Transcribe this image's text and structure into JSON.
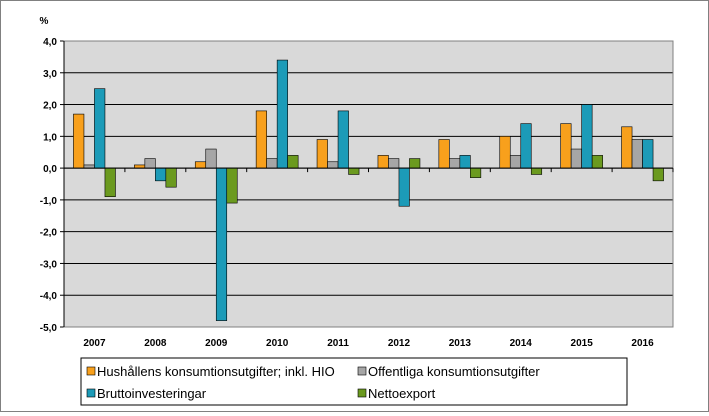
{
  "chart_data": {
    "type": "bar",
    "unit_label": "%",
    "categories": [
      "2007",
      "2008",
      "2009",
      "2010",
      "2011",
      "2012",
      "2013",
      "2014",
      "2015",
      "2016"
    ],
    "ylim": [
      -5.0,
      4.0
    ],
    "yticks": [
      "4,0",
      "3,0",
      "2,0",
      "1,0",
      "0,0",
      "-1,0",
      "-2,0",
      "-3,0",
      "-4,0",
      "-5,0"
    ],
    "ytick_values": [
      4,
      3,
      2,
      1,
      0,
      -1,
      -2,
      -3,
      -4,
      -5
    ],
    "grid": true,
    "legend_position": "bottom",
    "series": [
      {
        "name": "Hushållens konsumtionsutgifter; inkl. HIO",
        "color": "#F8A01C",
        "values": [
          1.7,
          0.1,
          0.2,
          1.8,
          0.9,
          0.4,
          0.9,
          1.0,
          1.4,
          1.3
        ]
      },
      {
        "name": "Offentliga konsumtionsutgifter",
        "color": "#A6A6A6",
        "values": [
          0.1,
          0.3,
          0.6,
          0.3,
          0.2,
          0.3,
          0.3,
          0.4,
          0.6,
          0.9
        ]
      },
      {
        "name": "Bruttoinvesteringar",
        "color": "#1C9BB8",
        "values": [
          2.5,
          -0.4,
          -4.8,
          3.4,
          1.8,
          -1.2,
          0.4,
          1.4,
          2.0,
          0.9
        ]
      },
      {
        "name": "Nettoexport",
        "color": "#6B9A1F",
        "values": [
          -0.9,
          -0.6,
          -1.1,
          0.4,
          -0.2,
          0.3,
          -0.3,
          -0.2,
          0.4,
          -0.4
        ]
      }
    ]
  }
}
